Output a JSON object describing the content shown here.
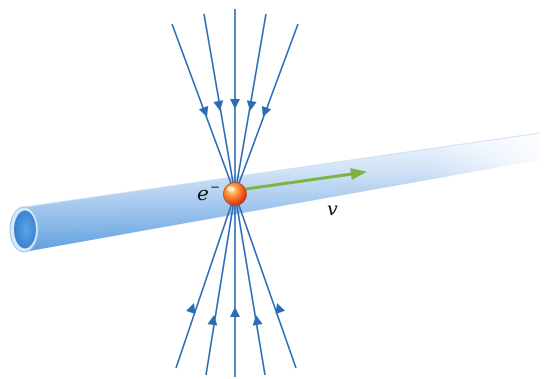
{
  "labels": {
    "electron_symbol": "e",
    "electron_charge": "−",
    "velocity_symbol": "v"
  },
  "colors": {
    "field_lines": "#2a6db3",
    "velocity_arrow": "#7cb342",
    "electron_core": "#e8541e",
    "tube_light": "#f4f8fd",
    "tube_mid": "#a9cbee",
    "tube_dark": "#3f8ed8"
  },
  "icons": {
    "electron": "red-ball",
    "field_arrow": "arrowhead"
  }
}
